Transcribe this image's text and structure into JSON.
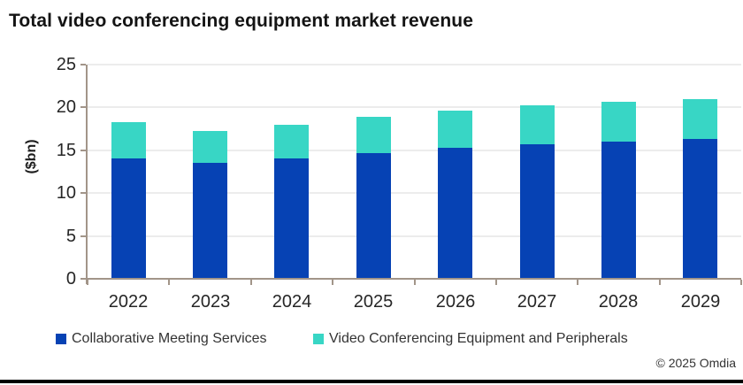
{
  "title": "Total video conferencing equipment market revenue",
  "copyright": "© 2025 Omdia",
  "colors": {
    "series_blue": "#0642b4",
    "series_teal": "#38d6c5",
    "axis": "#a29589",
    "gridline": "#ececec",
    "title_text": "#141414",
    "tick_text": "#262626",
    "legend_text": "#333333",
    "bottom_rule": "#000000"
  },
  "chart_data": {
    "type": "bar",
    "stacked": true,
    "title": "Total video conferencing equipment market revenue",
    "ylabel": "($bn)",
    "xlabel": "",
    "ylim": [
      0,
      25
    ],
    "ytick_step": 5,
    "grid": true,
    "legend_position": "bottom",
    "categories": [
      "2022",
      "2023",
      "2024",
      "2025",
      "2026",
      "2027",
      "2028",
      "2029"
    ],
    "series": [
      {
        "name": "Collaborative Meeting Services",
        "color": "#0642b4",
        "values": [
          14.0,
          13.5,
          14.1,
          14.7,
          15.3,
          15.7,
          16.0,
          16.3
        ]
      },
      {
        "name": "Video Conferencing Equipment and Peripherals",
        "color": "#38d6c5",
        "values": [
          4.2,
          3.7,
          3.9,
          4.2,
          4.3,
          4.5,
          4.6,
          4.6
        ]
      }
    ],
    "stacked_totals": [
      18.2,
      17.2,
      18.0,
      18.9,
      19.6,
      20.2,
      20.6,
      20.9
    ]
  }
}
